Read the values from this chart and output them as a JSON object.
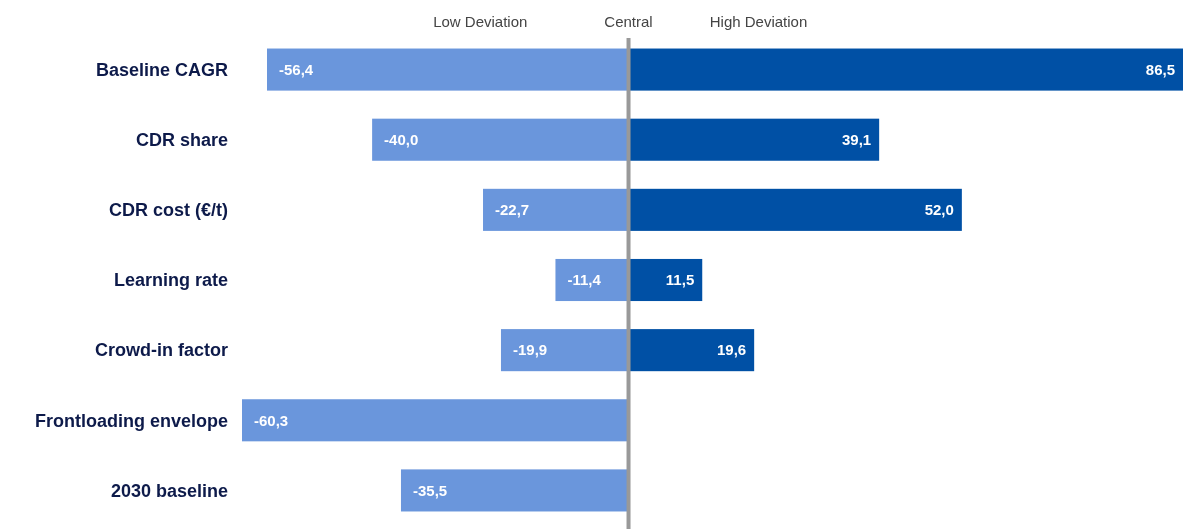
{
  "chart_data": {
    "type": "bar",
    "orientation": "horizontal",
    "stacked": true,
    "legend": "top",
    "categories": [
      "Baseline CAGR",
      "CDR share",
      "CDR cost (€/t)",
      "Learning rate",
      "Crowd-in factor",
      "Frontloading envelope",
      "2030 baseline"
    ],
    "series": [
      {
        "name": "Low Deviation",
        "color": "#6a96dc",
        "values": [
          -56.4,
          -40.0,
          -22.7,
          -11.4,
          -19.9,
          -60.3,
          -35.5
        ],
        "value_labels": [
          "-56,4",
          "-40,0",
          "-22,7",
          "-11,4",
          "-19,9",
          "-60,3",
          "-35,5"
        ]
      },
      {
        "name": "High Deviation",
        "color": "#0050a5",
        "values": [
          86.5,
          39.1,
          52.0,
          11.5,
          19.6,
          null,
          null
        ],
        "value_labels": [
          "86,5",
          "39,1",
          "52,0",
          "11,5",
          "19,6",
          null,
          null
        ]
      }
    ],
    "ref_lines": [
      {
        "axis": "x",
        "value": 0,
        "label": "Central",
        "color": "#999999"
      }
    ]
  }
}
